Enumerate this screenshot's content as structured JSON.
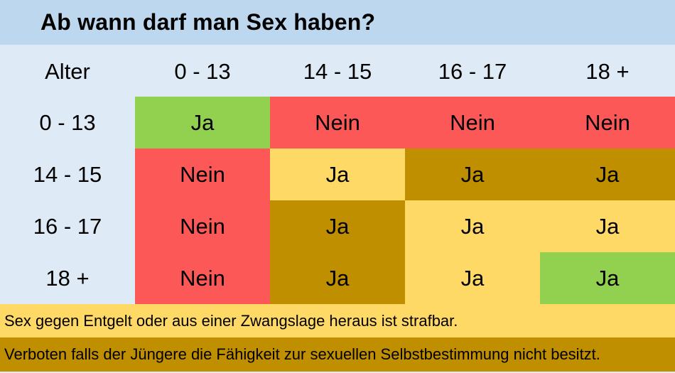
{
  "title": "Ab wann darf man Sex haben?",
  "colors": {
    "title_bar": "#BCD7EE",
    "background": "#DEEAF6",
    "green": "#92D050",
    "red": "#FC5858",
    "yellow": "#FFD966",
    "darkgold": "#BF8F00",
    "text": "#000000"
  },
  "chart_data": {
    "type": "table",
    "title": "Ab wann darf man Sex haben?",
    "corner_label": "Alter",
    "columns": [
      "0 - 13",
      "14 - 15",
      "16 - 17",
      "18 +"
    ],
    "rows": [
      "0 - 13",
      "14 - 15",
      "16 - 17",
      "18 +"
    ],
    "values": [
      [
        "Ja",
        "Nein",
        "Nein",
        "Nein"
      ],
      [
        "Nein",
        "Ja",
        "Ja",
        "Ja"
      ],
      [
        "Nein",
        "Ja",
        "Ja",
        "Ja"
      ],
      [
        "Nein",
        "Ja",
        "Ja",
        "Ja"
      ]
    ],
    "cell_colors": [
      [
        "green",
        "red",
        "red",
        "red"
      ],
      [
        "red",
        "yellow",
        "darkgold",
        "darkgold"
      ],
      [
        "red",
        "darkgold",
        "yellow",
        "yellow"
      ],
      [
        "red",
        "darkgold",
        "yellow",
        "green"
      ]
    ],
    "legend": [
      {
        "color": "yellow",
        "text": "Sex gegen Entgelt oder aus einer Zwangslage heraus ist strafbar."
      },
      {
        "color": "darkgold",
        "text": "Verboten falls der Jüngere die Fähigkeit zur sexuellen Selbstbestimmung nicht besitzt."
      }
    ]
  }
}
